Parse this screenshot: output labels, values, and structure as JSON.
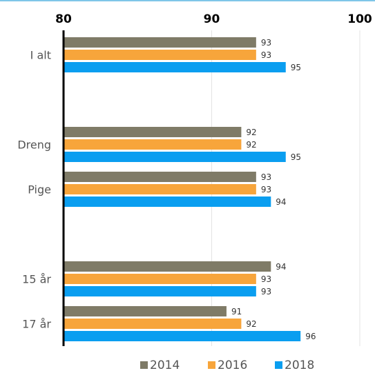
{
  "chart_data": {
    "type": "bar",
    "orientation": "horizontal",
    "xlim": [
      80,
      100
    ],
    "xticks": [
      "80",
      "90",
      "100"
    ],
    "grid": true,
    "legend_position": "bottom",
    "categories": [
      "I alt",
      "",
      "Dreng",
      "Pige",
      "",
      "15 år",
      "17 år"
    ],
    "series": [
      {
        "name": "2014",
        "color": "#7f7b67",
        "values": [
          93,
          null,
          92,
          93,
          null,
          94,
          91
        ]
      },
      {
        "name": "2016",
        "color": "#f7a53b",
        "values": [
          93,
          null,
          92,
          93,
          null,
          93,
          92
        ]
      },
      {
        "name": "2018",
        "color": "#0a9ef0",
        "values": [
          95,
          null,
          95,
          94,
          null,
          93,
          96
        ]
      }
    ]
  }
}
